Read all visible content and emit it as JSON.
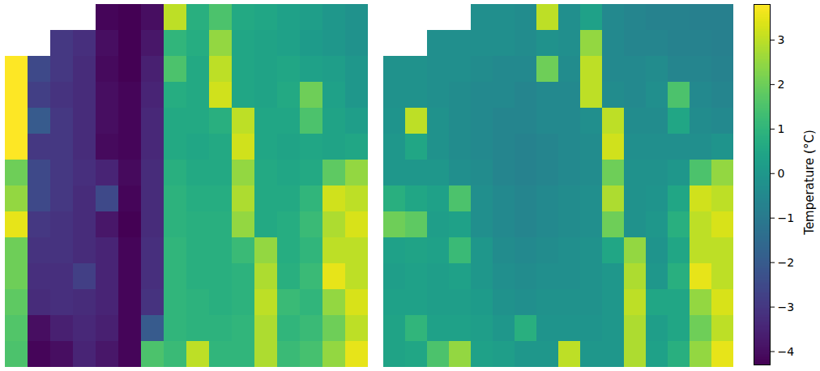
{
  "chart_data": {
    "type": "heatmap",
    "color": "viridis",
    "tick_labels": false,
    "color_range": [
      -4.3,
      3.8
    ],
    "color_ticks": [
      -4,
      -3,
      -2,
      -1,
      0,
      1,
      2,
      3
    ],
    "colorbar_label": "Temperature (°C)",
    "panels": [
      {
        "cells": [
          [
            null,
            null,
            null,
            null,
            -4.2,
            -4.3,
            -4.0,
            3.0,
            0.8,
            1.5,
            0.6,
            0.5,
            0.3,
            0.2,
            0.0,
            -0.2
          ],
          [
            null,
            null,
            -3.0,
            -3.2,
            -4.0,
            -4.3,
            -3.8,
            1.0,
            0.7,
            2.5,
            0.5,
            0.4,
            0.3,
            0.1,
            0.0,
            -0.2
          ],
          [
            3.8,
            -2.5,
            -3.0,
            -3.3,
            -4.1,
            -4.3,
            -3.6,
            1.5,
            0.6,
            3.0,
            0.5,
            0.4,
            0.5,
            0.3,
            0.2,
            0.0
          ],
          [
            3.8,
            -2.8,
            -3.1,
            -3.3,
            -4.0,
            -4.2,
            -3.5,
            0.7,
            0.6,
            3.2,
            0.5,
            0.4,
            0.6,
            2.0,
            0.3,
            0.0
          ],
          [
            3.8,
            -2.0,
            -3.0,
            -3.3,
            -4.0,
            -4.2,
            -3.4,
            0.6,
            0.6,
            0.8,
            3.0,
            0.5,
            0.5,
            1.5,
            0.4,
            0.2
          ],
          [
            3.8,
            -3.0,
            -3.0,
            -3.3,
            -4.1,
            -4.2,
            -3.4,
            0.6,
            0.5,
            0.6,
            3.2,
            0.5,
            0.4,
            0.5,
            0.4,
            0.5
          ],
          [
            2.0,
            -2.5,
            -3.0,
            -3.2,
            -3.5,
            -4.1,
            -3.3,
            0.8,
            0.6,
            0.6,
            2.5,
            0.6,
            0.5,
            0.6,
            1.8,
            2.5
          ],
          [
            2.5,
            -2.5,
            -3.0,
            -3.3,
            -2.5,
            -4.2,
            -3.3,
            0.9,
            0.7,
            0.7,
            2.8,
            0.6,
            0.6,
            1.0,
            3.2,
            3.0
          ],
          [
            3.5,
            -3.0,
            -3.1,
            -3.3,
            -3.8,
            -4.3,
            -3.3,
            0.9,
            0.8,
            0.8,
            2.5,
            0.6,
            0.7,
            1.2,
            2.8,
            3.3
          ],
          [
            2.0,
            -3.1,
            -3.1,
            -3.3,
            -3.5,
            -4.2,
            -3.2,
            1.0,
            0.8,
            0.8,
            1.2,
            2.5,
            0.7,
            1.0,
            3.0,
            3.0
          ],
          [
            2.0,
            -3.2,
            -3.2,
            -2.8,
            -3.5,
            -4.2,
            -3.2,
            1.0,
            0.8,
            0.8,
            0.9,
            2.8,
            0.8,
            1.2,
            3.5,
            3.0
          ],
          [
            1.8,
            -3.3,
            -3.2,
            -3.3,
            -3.5,
            -4.2,
            -3.1,
            1.0,
            0.9,
            0.8,
            0.9,
            3.0,
            1.2,
            1.0,
            2.5,
            3.3
          ],
          [
            1.6,
            -4.0,
            -3.6,
            -3.4,
            -3.6,
            -4.2,
            -2.0,
            1.0,
            0.9,
            0.9,
            1.0,
            2.8,
            1.0,
            1.2,
            2.0,
            3.0
          ],
          [
            1.5,
            -4.2,
            -4.0,
            -3.5,
            -3.8,
            -4.2,
            1.5,
            1.2,
            3.0,
            1.0,
            1.0,
            2.8,
            1.2,
            1.4,
            2.5,
            3.5
          ]
        ]
      },
      {
        "cells": [
          [
            null,
            null,
            null,
            null,
            -0.3,
            -0.3,
            -0.4,
            3.0,
            -0.3,
            0.3,
            -0.5,
            -0.6,
            -0.7,
            -0.7,
            -0.8,
            -0.8
          ],
          [
            null,
            null,
            -0.3,
            -0.3,
            -0.3,
            -0.3,
            -0.4,
            -0.2,
            -0.3,
            2.5,
            -0.5,
            -0.6,
            -0.6,
            -0.7,
            -0.7,
            -0.8
          ],
          [
            -0.2,
            -0.2,
            -0.3,
            -0.3,
            -0.4,
            -0.5,
            -0.5,
            2.0,
            -0.4,
            3.0,
            -0.5,
            -0.5,
            -0.4,
            -0.6,
            -0.6,
            -0.7
          ],
          [
            -0.2,
            -0.2,
            -0.3,
            -0.4,
            -0.5,
            -0.5,
            -0.6,
            -0.5,
            -0.5,
            3.0,
            -0.4,
            -0.5,
            -0.3,
            1.5,
            -0.5,
            -0.6
          ],
          [
            -0.1,
            3.0,
            -0.2,
            -0.4,
            -0.5,
            -0.6,
            -0.6,
            -0.5,
            -0.5,
            -0.3,
            3.0,
            -0.4,
            -0.4,
            0.5,
            -0.4,
            -0.5
          ],
          [
            0.0,
            0.5,
            -0.2,
            -0.4,
            -0.5,
            -0.6,
            -0.7,
            -0.6,
            -0.5,
            -0.4,
            3.2,
            -0.3,
            -0.3,
            -0.3,
            -0.3,
            -0.1
          ],
          [
            0.0,
            0.0,
            0.0,
            -0.3,
            -0.4,
            -0.6,
            -0.7,
            -0.6,
            -0.5,
            -0.4,
            2.0,
            -0.2,
            -0.2,
            0.0,
            1.5,
            2.5
          ],
          [
            0.8,
            0.5,
            0.3,
            1.5,
            -0.3,
            -0.5,
            -0.6,
            -0.5,
            -0.4,
            -0.3,
            2.8,
            -0.2,
            -0.1,
            0.5,
            3.2,
            3.0
          ],
          [
            2.0,
            1.8,
            0.2,
            0.3,
            -0.3,
            -0.5,
            -0.6,
            -0.5,
            -0.4,
            -0.3,
            2.0,
            -0.2,
            0.0,
            0.8,
            3.0,
            3.3
          ],
          [
            0.3,
            0.4,
            0.3,
            1.2,
            0.0,
            -0.4,
            -0.5,
            -0.4,
            -0.3,
            -0.2,
            0.5,
            2.5,
            -0.1,
            0.5,
            3.0,
            3.0
          ],
          [
            0.2,
            0.3,
            0.2,
            0.3,
            0.0,
            -0.3,
            -0.4,
            -0.3,
            -0.3,
            -0.2,
            0.0,
            2.8,
            0.0,
            0.8,
            3.5,
            3.0
          ],
          [
            0.3,
            0.3,
            0.2,
            0.2,
            0.1,
            -0.2,
            -0.3,
            -0.2,
            -0.2,
            -0.2,
            0.0,
            3.0,
            0.5,
            0.5,
            2.5,
            3.3
          ],
          [
            0.4,
            1.0,
            0.3,
            0.3,
            0.2,
            0.0,
            0.8,
            -0.1,
            -0.1,
            -0.1,
            0.0,
            2.8,
            0.2,
            0.5,
            2.0,
            3.0
          ],
          [
            0.4,
            0.5,
            1.5,
            2.5,
            0.3,
            0.2,
            0.0,
            0.0,
            3.0,
            0.0,
            0.0,
            2.8,
            0.3,
            0.8,
            2.5,
            3.5
          ]
        ]
      }
    ]
  }
}
